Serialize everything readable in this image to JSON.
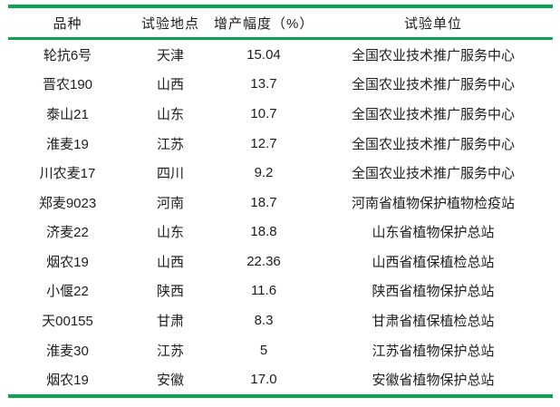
{
  "table": {
    "accent_color": "#0aa64f",
    "text_color": "#1d1d1d",
    "columns": [
      "品种",
      "试验地点",
      "增产幅度（%）",
      "试验单位"
    ],
    "rows": [
      [
        "轮抗6号",
        "天津",
        "15.04",
        "全国农业技术推广服务中心"
      ],
      [
        "晋农190",
        "山西",
        "13.7",
        "全国农业技术推广服务中心"
      ],
      [
        "泰山21",
        "山东",
        "10.7",
        "全国农业技术推广服务中心"
      ],
      [
        "淮麦19",
        "江苏",
        "12.7",
        "全国农业技术推广服务中心"
      ],
      [
        "川农麦17",
        "四川",
        "9.2",
        "全国农业技术推广服务中心"
      ],
      [
        "郑麦9023",
        "河南",
        "18.7",
        "河南省植物保护植物检疫站"
      ],
      [
        "济麦22",
        "山东",
        "18.8",
        "山东省植物保护总站"
      ],
      [
        "烟农19",
        "山西",
        "22.36",
        "山西省植保植检总站"
      ],
      [
        "小偃22",
        "陕西",
        "11.6",
        "陕西省植物保护总站"
      ],
      [
        "天00155",
        "甘肃",
        "8.3",
        "甘肃省植保植检总站"
      ],
      [
        "淮麦30",
        "江苏",
        "5",
        "江苏省植物保护总站"
      ],
      [
        "烟农19",
        "安徽",
        "17.0",
        "安徽省植物保护总站"
      ]
    ]
  }
}
